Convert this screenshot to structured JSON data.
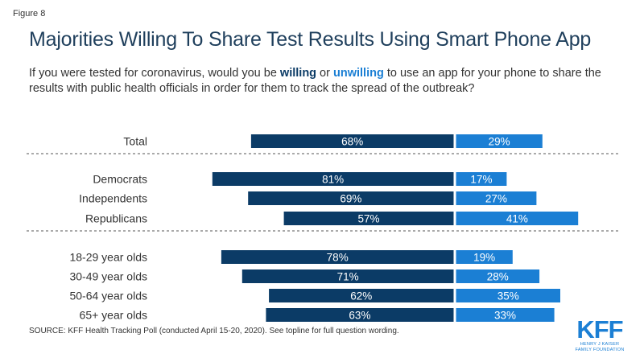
{
  "figure_label": "Figure 8",
  "title": "Majorities Willing To Share Test Results Using Smart Phone App",
  "subtitle": {
    "pre": "If you were tested for coronavirus, would you be ",
    "willing": "willing",
    "mid": " or ",
    "unwilling": "unwilling",
    "post": " to use an app for your phone to share the results with public health officials in order for them to track the spread of the outbreak?"
  },
  "colors": {
    "willing": "#0b3b66",
    "unwilling": "#1b7fd4"
  },
  "chart_data": {
    "type": "bar",
    "orientation": "horizontal-diverging",
    "series": [
      {
        "name": "Willing",
        "values": [
          68,
          81,
          69,
          57,
          78,
          71,
          62,
          63
        ]
      },
      {
        "name": "Unwilling",
        "values": [
          29,
          17,
          27,
          41,
          19,
          28,
          35,
          33
        ]
      }
    ],
    "categories": [
      "Total",
      "Democrats",
      "Independents",
      "Republicans",
      "18-29 year olds",
      "30-49 year olds",
      "50-64 year olds",
      "65+ year olds"
    ],
    "groups": [
      [
        "Total"
      ],
      [
        "Democrats",
        "Independents",
        "Republicans"
      ],
      [
        "18-29 year olds",
        "30-49 year olds",
        "50-64 year olds",
        "65+ year olds"
      ]
    ],
    "value_suffix": "%",
    "data_labels": true,
    "legend": "none"
  },
  "source": "SOURCE: KFF Health Tracking Poll (conducted April 15-20, 2020). See topline for full question wording.",
  "logo": {
    "mark": "KFF",
    "line1": "HENRY J KAISER",
    "line2": "FAMILY FOUNDATION"
  }
}
